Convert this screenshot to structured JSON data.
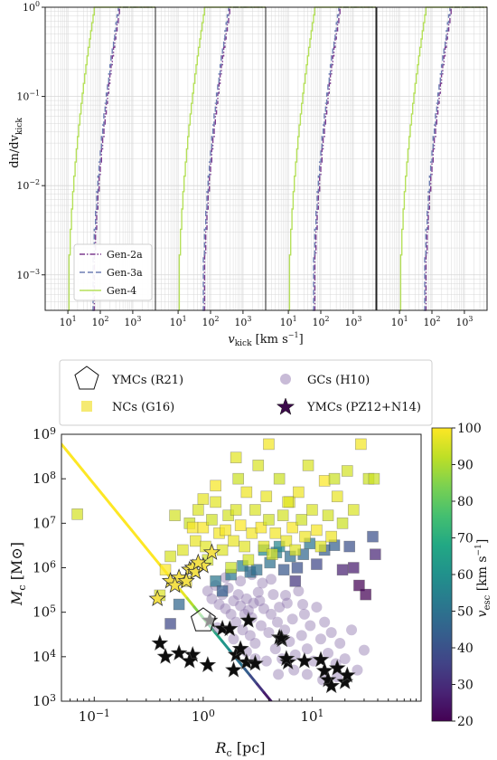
{
  "colors": {
    "gen2a": "#7d3c8f",
    "gen3a": "#6f7fb3",
    "gen4": "#b5e05a",
    "viridis": [
      "#440154",
      "#482475",
      "#414487",
      "#355f8d",
      "#2a788e",
      "#21918c",
      "#22a884",
      "#44bf70",
      "#7ad151",
      "#bddf26",
      "#fde725"
    ],
    "frame": "#222222",
    "grid": "#d8d8d8"
  },
  "chart_data": [
    {
      "type": "line",
      "subtype": "cumulative-step",
      "panels": 4,
      "xscale": "log",
      "yscale": "log",
      "xlim": [
        2,
        5000
      ],
      "ylim": [
        0.0004,
        1
      ],
      "xticks": [
        {
          "value": 10,
          "label": "10",
          "exp": "1"
        },
        {
          "value": 100,
          "label": "10",
          "exp": "2"
        },
        {
          "value": 1000,
          "label": "10",
          "exp": "3"
        }
      ],
      "yticks": [
        {
          "value": 1,
          "label": "10",
          "exp": "0"
        },
        {
          "value": 0.1,
          "label": "10",
          "exp": "−1"
        },
        {
          "value": 0.01,
          "label": "10",
          "exp": "−2"
        },
        {
          "value": 0.001,
          "label": "10",
          "exp": "−3"
        }
      ],
      "xlabel_main": "v",
      "xlabel_sub": "kick",
      "xlabel_unit": " [km s",
      "xlabel_unit_exp": "−1",
      "xlabel_close": "]",
      "ylabel_text": "dn/dv",
      "ylabel_sub": "kick",
      "legend_position": "lower-left",
      "series": [
        {
          "name": "Gen-2a",
          "style": "dashdot",
          "color_key": "gen2a",
          "panel_min": [
            60,
            60,
            60,
            60
          ]
        },
        {
          "name": "Gen-3a",
          "style": "dashed",
          "color_key": "gen3a",
          "panel_min": [
            55,
            55,
            55,
            55
          ]
        },
        {
          "name": "Gen-4",
          "style": "solid",
          "color_key": "gen4",
          "panel_min": [
            10,
            10,
            10,
            10
          ]
        }
      ]
    },
    {
      "type": "scatter",
      "xscale": "log",
      "yscale": "log",
      "xlim": [
        0.05,
        100
      ],
      "ylim": [
        1000,
        1000000000
      ],
      "xlabel": "R",
      "xlabel_sub": "c",
      "xlabel_unit": " [pc]",
      "ylabel": "M",
      "ylabel_sub": "c",
      "ylabel_unit": " [M⊙]",
      "xticks": [
        {
          "value": 0.1,
          "label": "10",
          "exp": "−1"
        },
        {
          "value": 1,
          "label": "10",
          "exp": "0"
        },
        {
          "value": 10,
          "label": "10",
          "exp": "1"
        }
      ],
      "yticks": [
        {
          "value": 1000,
          "label": "10",
          "exp": "3"
        },
        {
          "value": 10000,
          "label": "10",
          "exp": "4"
        },
        {
          "value": 100000,
          "label": "10",
          "exp": "5"
        },
        {
          "value": 1000000,
          "label": "10",
          "exp": "6"
        },
        {
          "value": 10000000,
          "label": "10",
          "exp": "7"
        },
        {
          "value": 100000000,
          "label": "10",
          "exp": "8"
        },
        {
          "value": 1000000000,
          "label": "10",
          "exp": "9"
        }
      ],
      "legend": [
        {
          "label": "YMCs (R21)",
          "marker": "pentagon"
        },
        {
          "label": "GCs (H10)",
          "marker": "circle"
        },
        {
          "label": "NCs (G16)",
          "marker": "square"
        },
        {
          "label": "YMCs (PZ12+N14)",
          "marker": "star"
        }
      ],
      "colorbar": {
        "label": "v",
        "label_sub": "esc",
        "label_unit": " [km s",
        "label_unit_exp": "−1",
        "label_close": "]",
        "min": 20,
        "max": 100,
        "ticks": [
          20,
          30,
          40,
          50,
          60,
          70,
          80,
          90,
          100
        ]
      },
      "line": {
        "description": "v_esc = const",
        "points": [
          [
            0.05,
            600000000
          ],
          [
            4.2,
            1000
          ]
        ]
      },
      "ymc_r21": [
        {
          "x": 1.0,
          "y": 65000
        }
      ],
      "ymc_pz": [
        [
          0.4,
          20000
        ],
        [
          0.45,
          10000
        ],
        [
          0.6,
          12000
        ],
        [
          0.8,
          11000
        ],
        [
          0.75,
          8000
        ],
        [
          1.1,
          6500
        ],
        [
          1.15,
          65000
        ],
        [
          1.5,
          43000
        ],
        [
          1.75,
          42000
        ],
        [
          2.0,
          11000
        ],
        [
          2.2,
          15000
        ],
        [
          1.9,
          5000
        ],
        [
          2.5,
          7500
        ],
        [
          2.6,
          65000
        ],
        [
          3.0,
          7000
        ],
        [
          5.0,
          27000
        ],
        [
          5.3,
          24000
        ],
        [
          6.0,
          7500
        ],
        [
          5.8,
          9000
        ],
        [
          8.5,
          8000
        ],
        [
          12.0,
          8500
        ],
        [
          13.0,
          4800
        ],
        [
          14.0,
          3000
        ],
        [
          15.0,
          2200
        ],
        [
          17.0,
          5500
        ],
        [
          20.0,
          2700
        ],
        [
          21.0,
          3800
        ],
        [
          5.2,
          26000
        ]
      ],
      "ncs_bright": [
        [
          0.38,
          200000
        ],
        [
          0.5,
          500000
        ],
        [
          0.6,
          600000
        ],
        [
          0.75,
          900000
        ],
        [
          0.8,
          1000000
        ],
        [
          0.85,
          800000
        ],
        [
          0.7,
          500000
        ],
        [
          1.0,
          1100000
        ],
        [
          1.2,
          2200000
        ],
        [
          0.9,
          1300000
        ],
        [
          0.55,
          400000
        ]
      ],
      "ncs": [
        [
          0.07,
          16000000
        ],
        [
          0.4,
          240000
        ],
        [
          0.45,
          900000
        ],
        [
          0.5,
          1800000
        ],
        [
          0.55,
          15000000
        ],
        [
          0.65,
          2500000
        ],
        [
          0.7,
          500000
        ],
        [
          0.75,
          10000000
        ],
        [
          0.8,
          8000000
        ],
        [
          0.85,
          4000000
        ],
        [
          0.9,
          20000000
        ],
        [
          1.0,
          8000000
        ],
        [
          1.05,
          3000000
        ],
        [
          1.1,
          1500000
        ],
        [
          1.2,
          12000000
        ],
        [
          1.3,
          30000000
        ],
        [
          1.4,
          6000000
        ],
        [
          1.5,
          2500000
        ],
        [
          1.6,
          7000000
        ],
        [
          1.7,
          15000000
        ],
        [
          1.8,
          1000000
        ],
        [
          1.9,
          4000000
        ],
        [
          2.0,
          20000000
        ],
        [
          2.1,
          100000000
        ],
        [
          2.2,
          9000000
        ],
        [
          2.4,
          3000000
        ],
        [
          2.5,
          50000000
        ],
        [
          2.6,
          1500000
        ],
        [
          2.8,
          6000000
        ],
        [
          3.0,
          20000000
        ],
        [
          3.2,
          200000000
        ],
        [
          3.4,
          8000000
        ],
        [
          3.6,
          3000000
        ],
        [
          3.8,
          40000000
        ],
        [
          4.0,
          12000000
        ],
        [
          4.3,
          2000000
        ],
        [
          4.6,
          6000000
        ],
        [
          5.0,
          100000000
        ],
        [
          5.4,
          15000000
        ],
        [
          5.8,
          4000000
        ],
        [
          6.2,
          30000000
        ],
        [
          6.6,
          8000000
        ],
        [
          7.0,
          2500000
        ],
        [
          7.5,
          50000000
        ],
        [
          8.0,
          12000000
        ],
        [
          8.6,
          5000000
        ],
        [
          9.2,
          200000000
        ],
        [
          10.0,
          20000000
        ],
        [
          11.0,
          7000000
        ],
        [
          12.0,
          3000000
        ],
        [
          13.0,
          90000000
        ],
        [
          14.0,
          15000000
        ],
        [
          15.0,
          5000000
        ],
        [
          17.0,
          40000000
        ],
        [
          19.0,
          10000000
        ],
        [
          21.0,
          150000000
        ],
        [
          24.0,
          20000000
        ],
        [
          28.0,
          600000000
        ],
        [
          33.0,
          100000000
        ],
        [
          37.0,
          100000000
        ],
        [
          1.0,
          35000000
        ],
        [
          1.3,
          70000000
        ],
        [
          2.0,
          300000000
        ],
        [
          4.0,
          600000000
        ],
        [
          6.0,
          30000000
        ],
        [
          16.0,
          100000000
        ]
      ],
      "ncs_cool": [
        [
          0.5,
          55000
        ],
        [
          0.6,
          150000
        ],
        [
          1.3,
          500000
        ],
        [
          1.5,
          300000
        ],
        [
          1.8,
          700000
        ],
        [
          2.3,
          1100000
        ],
        [
          2.7,
          800000
        ],
        [
          3.1,
          900000
        ],
        [
          3.6,
          2500000
        ],
        [
          4.1,
          1300000
        ],
        [
          4.7,
          2200000
        ],
        [
          5.5,
          900000
        ],
        [
          6.3,
          1800000
        ],
        [
          7.3,
          1000000
        ],
        [
          8.3,
          2000000
        ],
        [
          9.5,
          3500000
        ],
        [
          11.0,
          1200000
        ],
        [
          13.0,
          2500000
        ],
        [
          16.0,
          3200000
        ],
        [
          19.0,
          900000
        ],
        [
          22.0,
          3000000
        ],
        [
          24.0,
          1000000
        ],
        [
          27.0,
          400000
        ],
        [
          31.0,
          250000
        ],
        [
          36.0,
          5000000
        ],
        [
          38.0,
          2000000
        ],
        [
          5.0,
          3000000
        ],
        [
          7.0,
          500000
        ]
      ],
      "gcs": [
        [
          1.1,
          300000
        ],
        [
          1.2,
          200000
        ],
        [
          1.3,
          400000
        ],
        [
          1.4,
          150000
        ],
        [
          1.5,
          250000
        ],
        [
          1.6,
          120000
        ],
        [
          1.7,
          350000
        ],
        [
          1.8,
          90000
        ],
        [
          1.9,
          180000
        ],
        [
          2.0,
          60000
        ],
        [
          2.1,
          250000
        ],
        [
          2.2,
          140000
        ],
        [
          2.3,
          40000
        ],
        [
          2.4,
          90000
        ],
        [
          2.5,
          200000
        ],
        [
          2.6,
          110000
        ],
        [
          2.7,
          30000
        ],
        [
          2.8,
          75000
        ],
        [
          2.9,
          160000
        ],
        [
          3.0,
          20000
        ],
        [
          3.2,
          280000
        ],
        [
          3.4,
          50000
        ],
        [
          3.6,
          120000
        ],
        [
          3.8,
          8000
        ],
        [
          4.0,
          35000
        ],
        [
          4.2,
          90000
        ],
        [
          4.4,
          250000
        ],
        [
          4.6,
          15000
        ],
        [
          4.8,
          60000
        ],
        [
          5.0,
          130000
        ],
        [
          5.3,
          9000
        ],
        [
          5.6,
          40000
        ],
        [
          5.9,
          160000
        ],
        [
          6.2,
          22000
        ],
        [
          6.6,
          70000
        ],
        [
          7.0,
          11000
        ],
        [
          7.5,
          300000
        ],
        [
          8.0,
          30000
        ],
        [
          8.5,
          90000
        ],
        [
          9.0,
          15000
        ],
        [
          9.6,
          50000
        ],
        [
          10.3,
          8000
        ],
        [
          11.0,
          130000
        ],
        [
          12.0,
          25000
        ],
        [
          13.0,
          60000
        ],
        [
          14.0,
          12000
        ],
        [
          15.0,
          35000
        ],
        [
          16.5,
          7000
        ],
        [
          18.0,
          20000
        ],
        [
          20.0,
          9000
        ],
        [
          23.0,
          40000
        ],
        [
          26.0,
          5000
        ],
        [
          30.0,
          14000
        ],
        [
          1.6,
          600000
        ],
        [
          2.2,
          500000
        ],
        [
          2.8,
          700000
        ],
        [
          3.5,
          450000
        ],
        [
          4.2,
          550000
        ],
        [
          3.0,
          9000
        ],
        [
          2.5,
          13000
        ],
        [
          6.8,
          5000
        ],
        [
          1.35,
          45000
        ],
        [
          1.9,
          25000
        ],
        [
          9.0,
          4000
        ],
        [
          12.5,
          3000
        ],
        [
          17.0,
          3500
        ],
        [
          4.9,
          4000
        ],
        [
          3.3,
          180000
        ],
        [
          5.7,
          240000
        ],
        [
          8.2,
          150000
        ]
      ]
    }
  ]
}
